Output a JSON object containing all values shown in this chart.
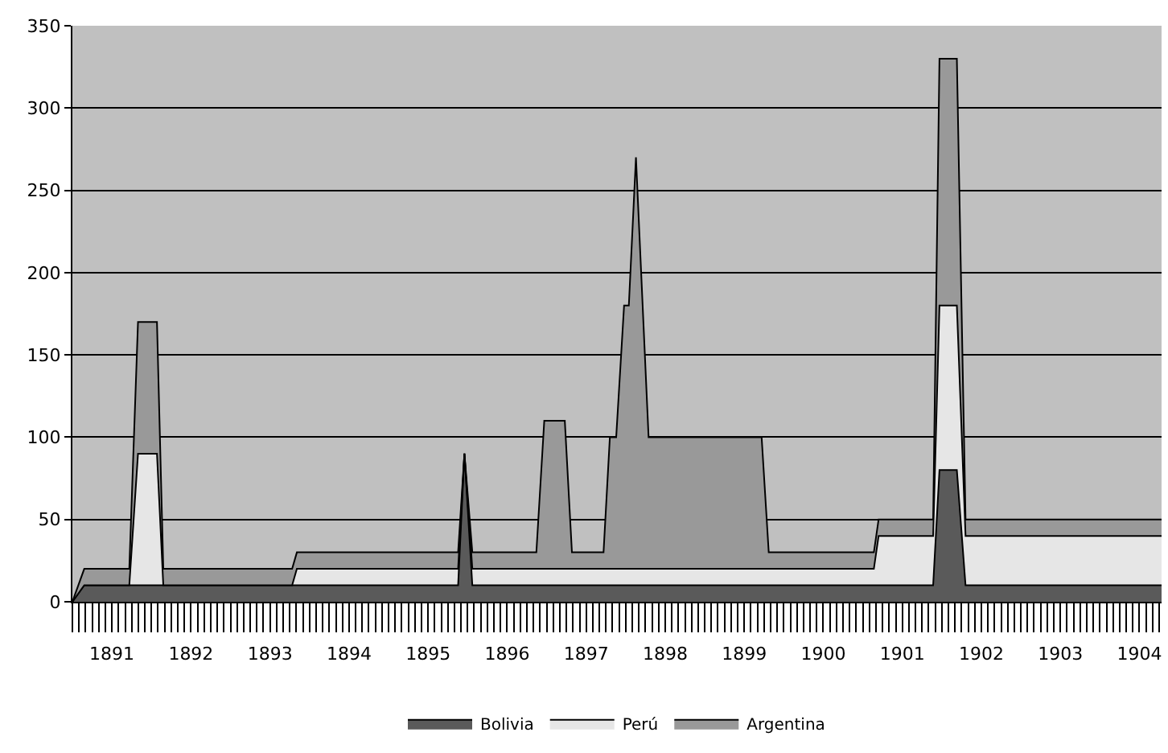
{
  "chart_data": {
    "type": "area",
    "stacked": true,
    "x": [
      1891.0,
      1891.15,
      1891.72,
      1891.83,
      1892.07,
      1892.15,
      1893.78,
      1893.84,
      1895.88,
      1895.96,
      1896.06,
      1896.87,
      1896.97,
      1897.23,
      1897.32,
      1897.72,
      1897.8,
      1897.88,
      1897.98,
      1898.04,
      1898.13,
      1898.29,
      1899.72,
      1899.81,
      1901.14,
      1901.2,
      1901.89,
      1901.97,
      1902.19,
      1902.3,
      1904.78
    ],
    "series": [
      {
        "name": "Bolivia",
        "color": "#5a5a5a",
        "values": [
          0,
          10,
          10,
          10,
          10,
          10,
          10,
          10,
          10,
          90,
          10,
          10,
          10,
          10,
          10,
          10,
          10,
          10,
          10,
          10,
          10,
          10,
          10,
          10,
          10,
          10,
          10,
          80,
          80,
          10,
          10
        ]
      },
      {
        "name": "Perú",
        "color": "#e6e6e6",
        "values": [
          0,
          0,
          0,
          80,
          80,
          0,
          0,
          10,
          10,
          0,
          10,
          10,
          10,
          10,
          10,
          10,
          10,
          10,
          10,
          10,
          10,
          10,
          10,
          10,
          10,
          30,
          30,
          100,
          100,
          30,
          30
        ]
      },
      {
        "name": "Argentina",
        "color": "#999999",
        "values": [
          0,
          10,
          10,
          80,
          80,
          10,
          10,
          10,
          10,
          0,
          10,
          10,
          90,
          90,
          10,
          10,
          80,
          80,
          160,
          160,
          250,
          80,
          80,
          10,
          10,
          10,
          10,
          150,
          150,
          10,
          10
        ]
      }
    ],
    "xlim": [
      1891,
      1904.78
    ],
    "xticks": [
      {
        "value": 1891.5,
        "label": "1891"
      },
      {
        "value": 1892.5,
        "label": "1892"
      },
      {
        "value": 1893.5,
        "label": "1893"
      },
      {
        "value": 1894.5,
        "label": "1894"
      },
      {
        "value": 1895.5,
        "label": "1895"
      },
      {
        "value": 1896.5,
        "label": "1896"
      },
      {
        "value": 1897.5,
        "label": "1897"
      },
      {
        "value": 1898.5,
        "label": "1898"
      },
      {
        "value": 1899.5,
        "label": "1899"
      },
      {
        "value": 1900.5,
        "label": "1900"
      },
      {
        "value": 1901.5,
        "label": "1901"
      },
      {
        "value": 1902.5,
        "label": "1902"
      },
      {
        "value": 1903.5,
        "label": "1903"
      },
      {
        "value": 1904.5,
        "label": "1904"
      }
    ],
    "ylim": [
      0,
      350
    ],
    "yticks": [
      0,
      50,
      100,
      150,
      200,
      250,
      300,
      350
    ],
    "grid": "y",
    "legend": "bottom"
  }
}
